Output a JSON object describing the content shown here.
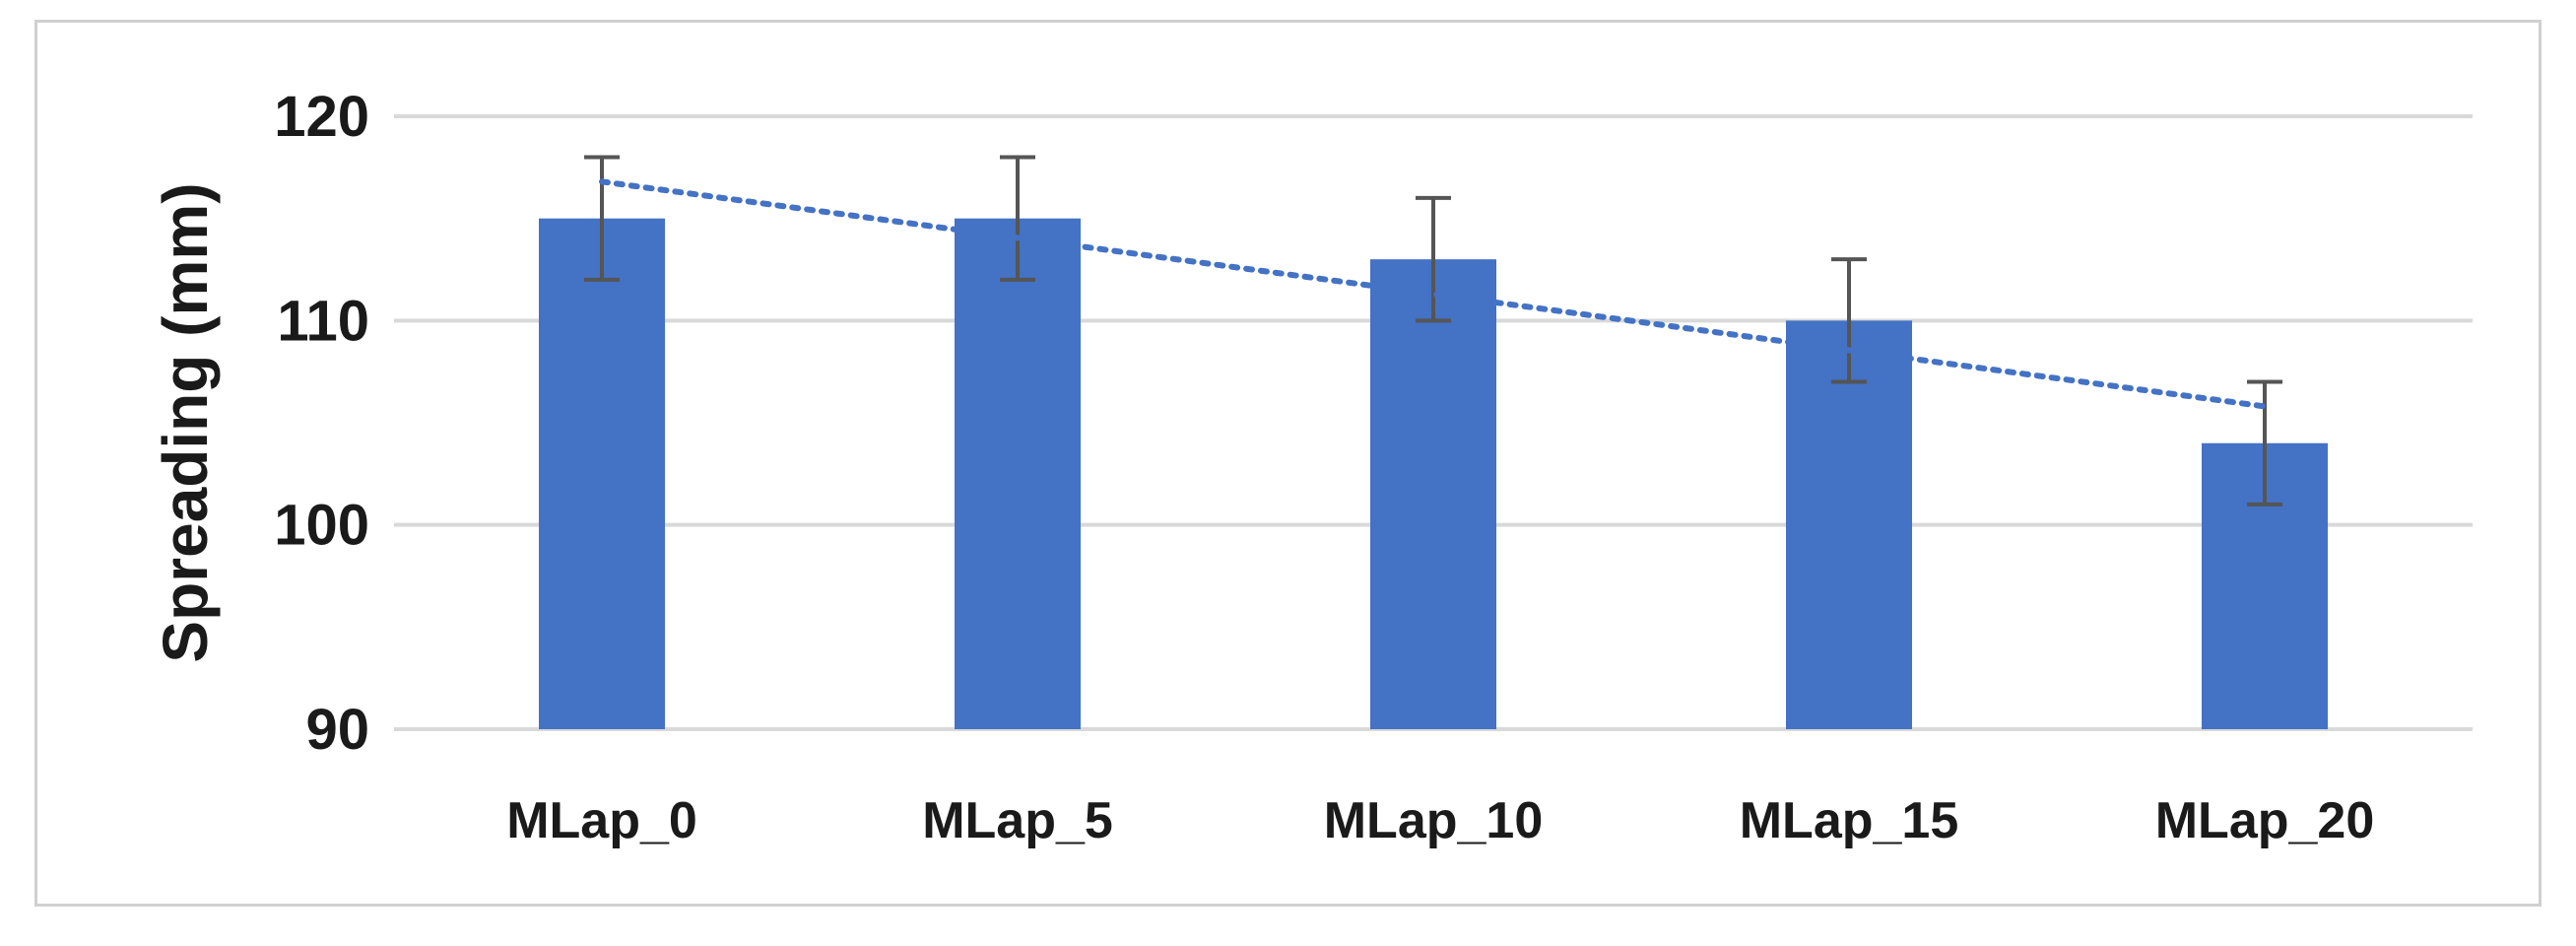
{
  "chart_data": {
    "type": "bar",
    "categories": [
      "MLap_0",
      "MLap_5",
      "MLap_10",
      "MLap_15",
      "MLap_20"
    ],
    "values": [
      115,
      115,
      113,
      110,
      104
    ],
    "error": [
      3,
      3,
      3,
      3,
      3
    ],
    "ylabel": "Spreading (mm)",
    "xlabel": "",
    "title": "",
    "ylim": [
      90,
      120
    ],
    "yticks": [
      90,
      100,
      110,
      120
    ],
    "grid": true,
    "trendline": {
      "type": "linear",
      "start": 116.8,
      "end": 105.8,
      "style": "dotted"
    },
    "colors": {
      "bar": "#4472c4",
      "error_bar": "#555555",
      "trendline": "#4472c4",
      "grid": "#d9d9d9"
    }
  }
}
